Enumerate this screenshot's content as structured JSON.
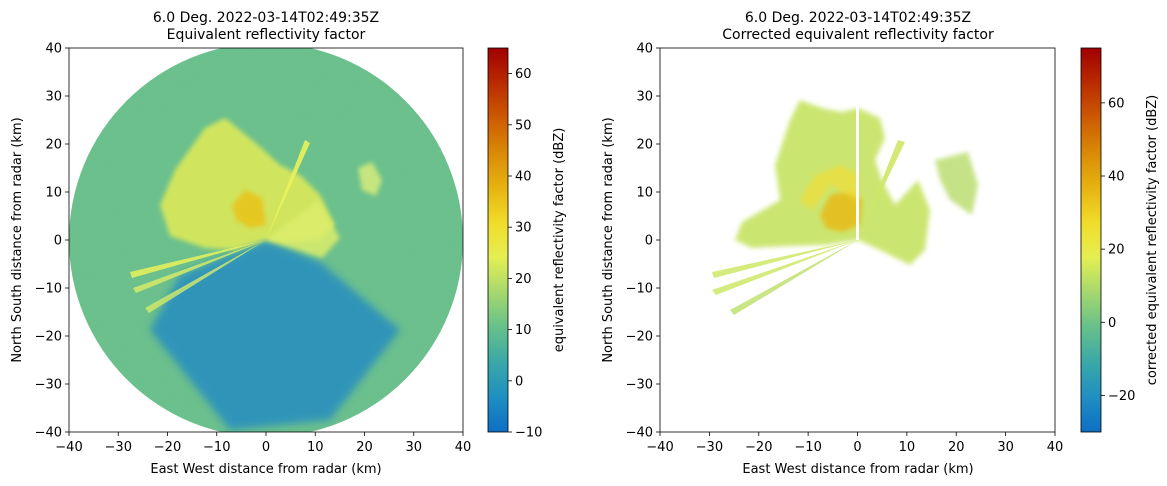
{
  "chart_data": [
    {
      "type": "heatmap",
      "title_line1": "6.0 Deg. 2022-03-14T02:49:35Z",
      "title_line2": "Equivalent reflectivity factor",
      "xlabel": "East West distance from radar (km)",
      "ylabel": "North South distance from radar (km)",
      "xlim": [
        -40,
        40
      ],
      "ylim": [
        -40,
        40
      ],
      "xticks": [
        "−40",
        "−30",
        "−20",
        "−10",
        "0",
        "10",
        "20",
        "30",
        "40"
      ],
      "yticks": [
        "−40",
        "−30",
        "−20",
        "−10",
        "0",
        "10",
        "20",
        "30",
        "40"
      ],
      "max_range_km": 40,
      "colorbar": {
        "label": "equivalent reflectivity factor (dBZ)",
        "range": [
          -10,
          65
        ],
        "ticks": [
          -10,
          0,
          10,
          20,
          30,
          40,
          50,
          60
        ],
        "tick_labels": [
          "−10",
          "0",
          "10",
          "20",
          "30",
          "40",
          "50",
          "60"
        ]
      }
    },
    {
      "type": "heatmap",
      "title_line1": "6.0 Deg. 2022-03-14T02:49:35Z",
      "title_line2": "Corrected equivalent reflectivity factor",
      "xlabel": "East West distance from radar (km)",
      "ylabel": "North South distance from radar (km)",
      "xlim": [
        -40,
        40
      ],
      "ylim": [
        -40,
        40
      ],
      "xticks": [
        "−40",
        "−30",
        "−20",
        "−10",
        "0",
        "10",
        "20",
        "30",
        "40"
      ],
      "yticks": [
        "−40",
        "−30",
        "−20",
        "−10",
        "0",
        "10",
        "20",
        "30",
        "40"
      ],
      "colorbar": {
        "label": "corrected equivalent reflectivity factor (dBZ)",
        "range": [
          -30,
          75
        ],
        "ticks": [
          -20,
          0,
          20,
          40,
          60
        ],
        "tick_labels": [
          "−20",
          "0",
          "20",
          "40",
          "60"
        ]
      }
    }
  ],
  "colormap": [
    "#0d6fc4",
    "#1f8fc2",
    "#3aa8a8",
    "#66c08a",
    "#a6d86e",
    "#e4ef52",
    "#f1dc2a",
    "#e6b311",
    "#d98a06",
    "#cc5a03",
    "#b92b00",
    "#a00000"
  ]
}
